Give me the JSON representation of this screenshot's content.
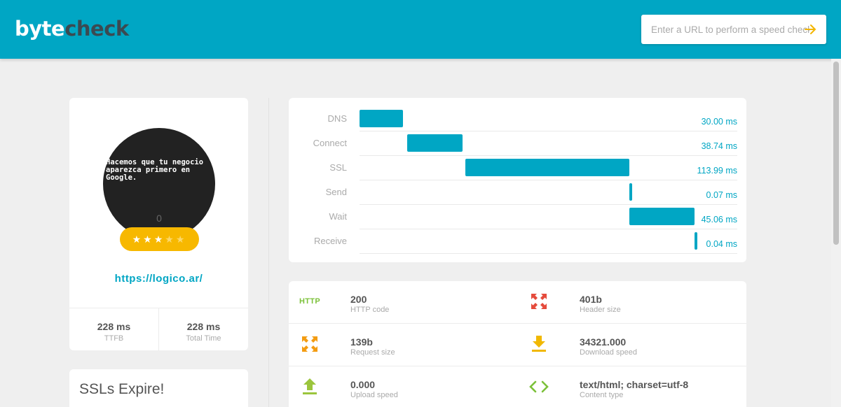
{
  "brand": {
    "part1": "byte",
    "part2": "check"
  },
  "search": {
    "placeholder": "Enter a URL to perform a speed check"
  },
  "profile": {
    "thumbnail_text": "Hacemos que tu negocio aparezca primero en Google.",
    "thumbnail_count": "0",
    "rating": 3,
    "rating_max": 5,
    "url": "https://logico.ar/",
    "stats": [
      {
        "value": "228 ms",
        "label": "TTFB"
      },
      {
        "value": "228 ms",
        "label": "Total Time"
      }
    ]
  },
  "ssl": {
    "title": "SSLs Expire!"
  },
  "timing": [
    {
      "label": "DNS",
      "value": "30.00 ms",
      "start_ms": 0,
      "duration_ms": 30.0
    },
    {
      "label": "Connect",
      "value": "38.74 ms",
      "start_ms": 33.0,
      "duration_ms": 38.74
    },
    {
      "label": "SSL",
      "value": "113.99 ms",
      "start_ms": 73.8,
      "duration_ms": 113.99
    },
    {
      "label": "Send",
      "value": "0.07 ms",
      "start_ms": 187.8,
      "duration_ms": 0.07
    },
    {
      "label": "Wait",
      "value": "45.06 ms",
      "start_ms": 187.9,
      "duration_ms": 45.06
    },
    {
      "label": "Receive",
      "value": "0.04 ms",
      "start_ms": 232.9,
      "duration_ms": 0.04
    }
  ],
  "metrics": [
    {
      "icon": "http-icon",
      "icon_text": "HTTP",
      "value": "200",
      "label": "HTTP code",
      "color": "#7cc13a"
    },
    {
      "icon": "expand-icon",
      "value": "401b",
      "label": "Header size",
      "color": "#e54b3c"
    },
    {
      "icon": "expand-icon",
      "value": "139b",
      "label": "Request size",
      "color": "#f39c12"
    },
    {
      "icon": "download-icon",
      "value": "34321.000",
      "label": "Download speed",
      "color": "#f1b800"
    },
    {
      "icon": "upload-icon",
      "value": "0.000",
      "label": "Upload speed",
      "color": "#9bc53d"
    },
    {
      "icon": "code-icon",
      "value": "text/html; charset=utf-8",
      "label": "Content type",
      "color": "#7cc13a"
    }
  ],
  "colors": {
    "accent": "#00a6c4",
    "star": "#f7b800"
  }
}
